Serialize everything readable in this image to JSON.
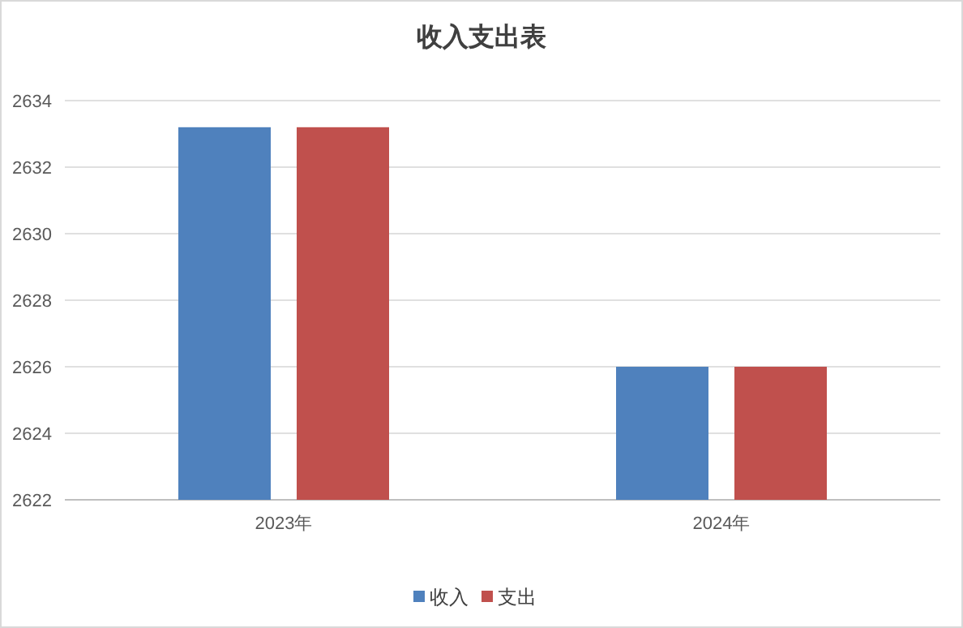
{
  "chart_data": {
    "type": "bar",
    "title": "收入支出表",
    "categories": [
      "2023年",
      "2024年"
    ],
    "series": [
      {
        "name": "收入",
        "color": "#4f81bd",
        "values": [
          2633.2,
          2626
        ]
      },
      {
        "name": "支出",
        "color": "#c0504d",
        "values": [
          2633.2,
          2626
        ]
      }
    ],
    "ylim": [
      2622,
      2634
    ],
    "yticks": [
      2622,
      2624,
      2626,
      2628,
      2630,
      2632,
      2634
    ],
    "grid": "y",
    "legend": "bottom"
  }
}
